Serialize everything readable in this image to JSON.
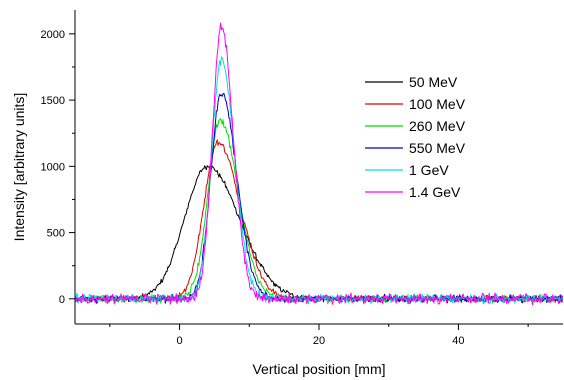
{
  "chart_data": {
    "type": "line",
    "xlabel": "Vertical position [mm]",
    "ylabel": "Intensity [arbitrary units]",
    "xlim": [
      -15,
      55
    ],
    "ylim": [
      -190,
      2180
    ],
    "x_ticks": [
      0,
      20,
      40
    ],
    "y_ticks": [
      0,
      500,
      1000,
      1500,
      2000
    ],
    "x_tick_labels": [
      "0",
      "20",
      "40"
    ],
    "y_tick_labels": [
      "0",
      "500",
      "1000",
      "1500",
      "2000"
    ],
    "grid": false,
    "legend_position": "top-right",
    "series": [
      {
        "name": "50 MeV",
        "color": "#000000",
        "peak_x": 4.0,
        "peak": 1000,
        "sigma_left": 3.3,
        "sigma_right": 4.6,
        "noise": 15
      },
      {
        "name": "100 MeV",
        "color": "#e00000",
        "peak_x": 5.5,
        "peak": 1180,
        "sigma_left": 2.0,
        "sigma_right": 3.2,
        "noise": 18
      },
      {
        "name": "260 MeV",
        "color": "#00e000",
        "peak_x": 5.8,
        "peak": 1350,
        "sigma_left": 1.7,
        "sigma_right": 2.6,
        "noise": 20
      },
      {
        "name": "550 MeV",
        "color": "#0000cc",
        "peak_x": 6.0,
        "peak": 1560,
        "sigma_left": 1.5,
        "sigma_right": 2.2,
        "noise": 22
      },
      {
        "name": "1 GeV",
        "color": "#00e0e0",
        "peak_x": 6.0,
        "peak": 1800,
        "sigma_left": 1.4,
        "sigma_right": 1.9,
        "noise": 25
      },
      {
        "name": "1.4 GeV",
        "color": "#ff00ff",
        "peak_x": 6.0,
        "peak": 2050,
        "sigma_left": 1.3,
        "sigma_right": 1.7,
        "noise": 28
      }
    ]
  }
}
